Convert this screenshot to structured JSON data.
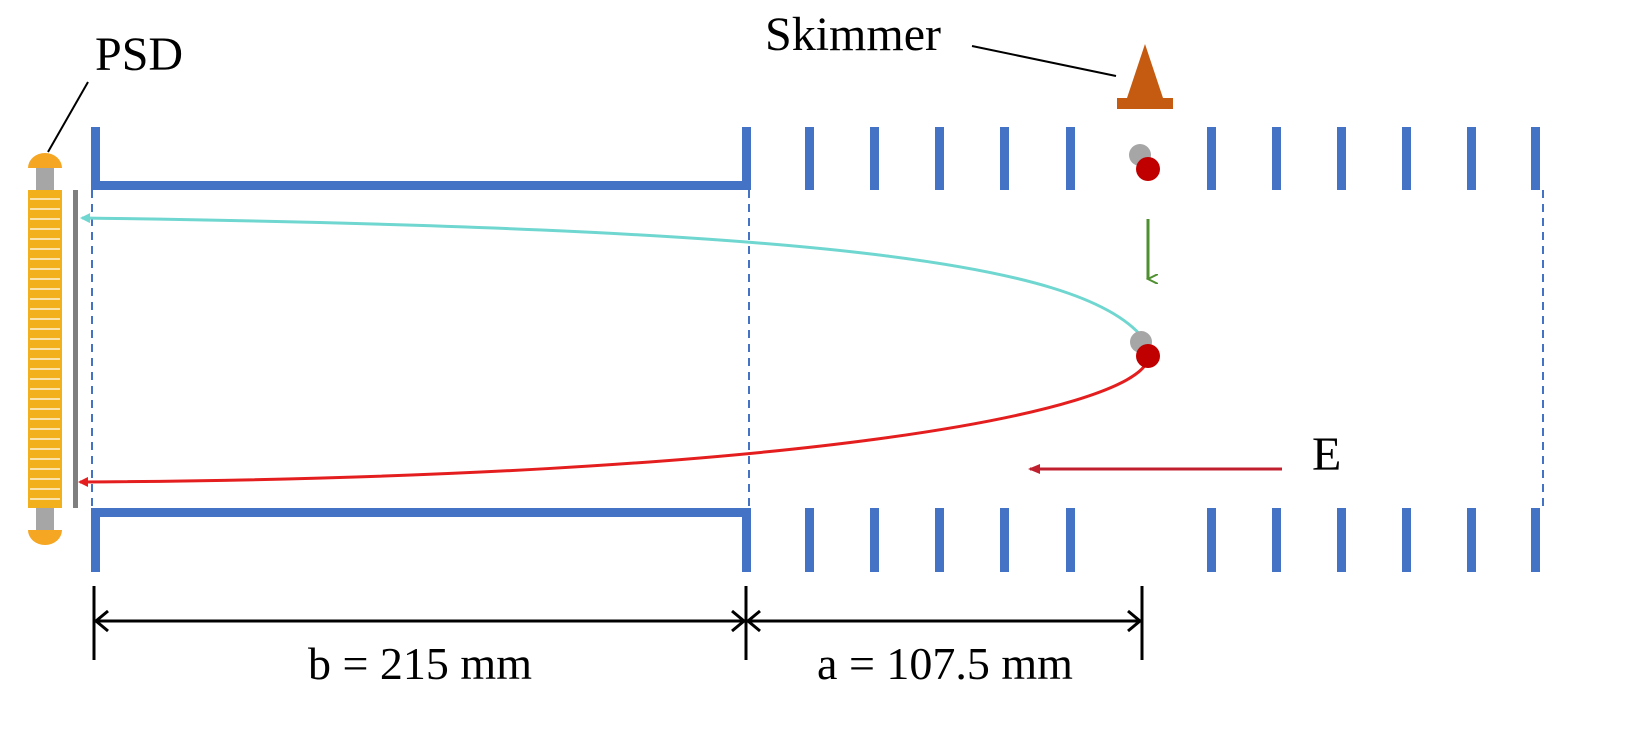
{
  "labels": {
    "psd": "PSD",
    "skimmer": "Skimmer",
    "field": "E",
    "dim_b": "b = 215 mm",
    "dim_a": "a = 107.5 mm"
  },
  "colors": {
    "electrode": "#4472C4",
    "detector": "#F2B11C",
    "detector_cap": "#F5A623",
    "detector_post": "#A6A6A6",
    "detector_plate": "#7F7F7F",
    "skimmer": "#C55A11",
    "upper_trajectory": "#70D6D0",
    "lower_trajectory": "#E41E1E",
    "particle_red": "#C00000",
    "particle_grey": "#A6A6A6",
    "motion_arrow": "#4E8F2F",
    "field_arrow": "#C0202E",
    "boundary_dashed": "#4472C4",
    "dimension": "#000000"
  }
}
